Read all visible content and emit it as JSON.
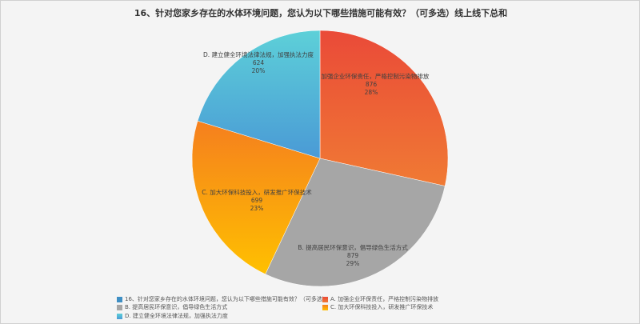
{
  "chart_data": {
    "type": "pie",
    "title": "16、针对您家乡存在的水体环境问题，您认为以下哪些措施可能有效？（可多选）线上线下总和",
    "start_angle": "top",
    "direction": "clockwise",
    "slices": [
      {
        "label": "A. 加强企业环保责任，严格控制污染物排放",
        "value": 876,
        "percent": "28%",
        "color": "#ea4a38",
        "color2": "#f07a34"
      },
      {
        "label": "B. 提高居民环保意识，倡导绿色生活方式",
        "value": 879,
        "percent": "29%",
        "color": "#a6a6a6",
        "color2": "#a6a6a6"
      },
      {
        "label": "C. 加大环保科技投入，研发推广环保技术",
        "value": 699,
        "percent": "23%",
        "color": "#f57f1e",
        "color2": "#ffc000"
      },
      {
        "label": "D. 建立健全环境法律法规，加强执法力度",
        "value": 624,
        "percent": "20%",
        "color": "#5dd0d8",
        "color2": "#4a9ad6"
      }
    ],
    "legend": {
      "placement": "bottom",
      "series_label": "16、针对您家乡存在的水体环境问题，您认为以下哪些措施可能有效？（可多选）",
      "series_color": "#3f8fc4"
    }
  }
}
